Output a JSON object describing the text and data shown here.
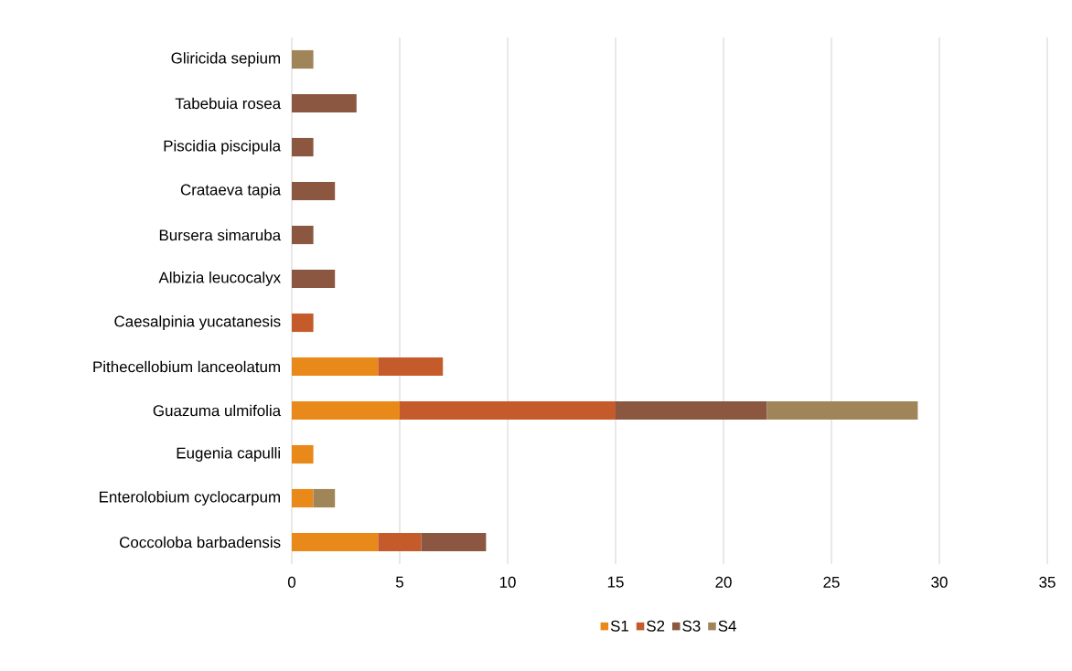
{
  "chart_data": {
    "type": "bar",
    "orientation": "horizontal",
    "stacked": true,
    "categories": [
      "Gliricida sepium",
      "Tabebuia rosea",
      "Piscidia piscipula",
      "Crataeva tapia",
      "Bursera simaruba",
      "Albizia leucocalyx",
      "Caesalpinia yucatanesis",
      "Pithecellobium lanceolatum",
      "Guazuma ulmifolia",
      "Eugenia capulli",
      "Enterolobium cyclocarpum",
      "Coccoloba barbadensis"
    ],
    "series": [
      {
        "name": "S1",
        "color": "#e8891a",
        "values": [
          null,
          null,
          null,
          null,
          null,
          null,
          null,
          4,
          5,
          1,
          1,
          4
        ]
      },
      {
        "name": "S2",
        "color": "#c55a2a",
        "values": [
          null,
          null,
          null,
          null,
          null,
          null,
          1,
          3,
          10,
          null,
          null,
          2
        ]
      },
      {
        "name": "S3",
        "color": "#8b5741",
        "values": [
          null,
          3,
          1,
          2,
          1,
          2,
          null,
          null,
          7,
          null,
          null,
          3
        ]
      },
      {
        "name": "S4",
        "color": "#a08559",
        "values": [
          1,
          null,
          null,
          null,
          null,
          null,
          null,
          null,
          7,
          null,
          1,
          null
        ]
      }
    ],
    "xlim": [
      0,
      35
    ],
    "xticks": [
      0,
      5,
      10,
      15,
      20,
      25,
      30,
      35
    ],
    "grid": "x",
    "legend": "bottom"
  }
}
